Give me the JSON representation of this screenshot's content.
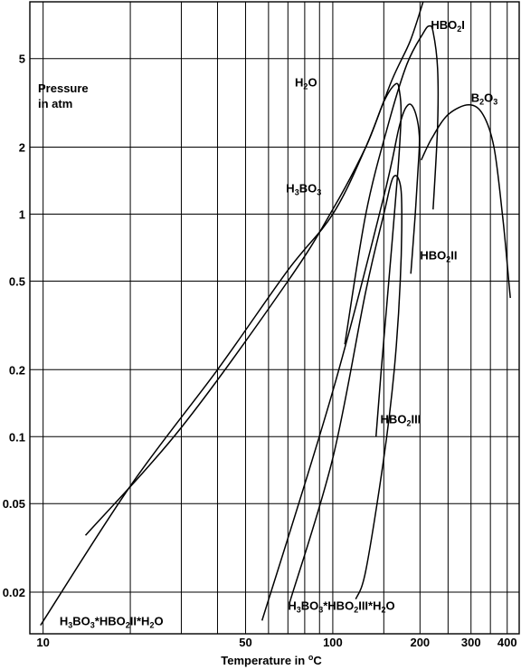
{
  "chart_data": {
    "type": "line",
    "title": "",
    "xlabel": "Temperature in °C",
    "xlabel_parts": {
      "text": "Temperature in ",
      "sup": "o",
      "unit": "C"
    },
    "ylabel_lines": [
      "Pressure",
      "in atm"
    ],
    "x_scale": "log",
    "y_scale": "log",
    "xlim": [
      9,
      440
    ],
    "ylim": [
      0.013,
      9
    ],
    "grid": true,
    "x_gridlines": [
      10,
      20,
      30,
      40,
      50,
      60,
      70,
      80,
      90,
      100,
      150,
      200,
      250,
      300,
      350,
      400
    ],
    "y_gridlines": [
      0.02,
      0.05,
      0.1,
      0.2,
      0.5,
      1,
      2,
      5
    ],
    "x_tick_labels": [
      {
        "value": 10,
        "label": "10"
      },
      {
        "value": 50,
        "label": "50"
      },
      {
        "value": 100,
        "label": "100"
      },
      {
        "value": 200,
        "label": "200"
      },
      {
        "value": 300,
        "label": "300"
      },
      {
        "value": 400,
        "label": "400"
      }
    ],
    "y_tick_labels": [
      {
        "value": 0.02,
        "label": "0.02"
      },
      {
        "value": 0.05,
        "label": "0.05"
      },
      {
        "value": 0.1,
        "label": "0.1"
      },
      {
        "value": 0.2,
        "label": "0.2"
      },
      {
        "value": 0.5,
        "label": "0.5"
      },
      {
        "value": 1,
        "label": "1"
      },
      {
        "value": 2,
        "label": "2"
      },
      {
        "value": 5,
        "label": "5"
      }
    ],
    "series": [
      {
        "name": "H2O",
        "label_parts": [
          {
            "t": "H"
          },
          {
            "t": "2",
            "sub": true
          },
          {
            "t": "O"
          }
        ],
        "label_at": {
          "x": 74,
          "y": 3.75
        },
        "points": [
          [
            9.8,
            0.0142
          ],
          [
            20,
            0.06
          ],
          [
            40,
            0.2
          ],
          [
            70,
            0.56
          ],
          [
            100,
            1.0
          ],
          [
            130,
            2.0
          ],
          [
            160,
            4.0
          ],
          [
            185,
            6.0
          ],
          [
            205,
            9.0
          ]
        ]
      },
      {
        "name": "H3BO3",
        "label_parts": [
          {
            "t": "H"
          },
          {
            "t": "3",
            "sub": true
          },
          {
            "t": "BO"
          },
          {
            "t": "3",
            "sub": true
          }
        ],
        "label_at": {
          "x": 69,
          "y": 1.25
        },
        "points": [
          [
            14,
            0.036
          ],
          [
            30,
            0.11
          ],
          [
            70,
            0.5
          ],
          [
            100,
            1.05
          ],
          [
            130,
            2.0
          ],
          [
            150,
            3.2
          ],
          [
            165,
            3.85
          ],
          [
            170,
            3.55
          ],
          [
            172,
            2.8
          ],
          [
            168,
            1.6
          ],
          [
            158,
            0.6
          ],
          [
            147,
            0.2
          ],
          [
            141,
            0.1
          ]
        ]
      },
      {
        "name": "HBO2I",
        "label_parts": [
          {
            "t": "HBO"
          },
          {
            "t": "2",
            "sub": true
          },
          {
            "t": "I"
          }
        ],
        "label_at": {
          "x": 218,
          "y": 6.8
        },
        "points": [
          [
            110,
            0.26
          ],
          [
            130,
            1.0
          ],
          [
            155,
            2.5
          ],
          [
            180,
            4.7
          ],
          [
            205,
            6.5
          ],
          [
            215,
            7.0
          ],
          [
            222,
            6.6
          ],
          [
            230,
            4.5
          ],
          [
            230,
            2.5
          ],
          [
            222,
            1.05
          ]
        ]
      },
      {
        "name": "HBO2II",
        "label_parts": [
          {
            "t": "HBO"
          },
          {
            "t": "2",
            "sub": true
          },
          {
            "t": "II"
          }
        ],
        "label_at": {
          "x": 200,
          "y": 0.625
        },
        "points": [
          [
            57,
            0.0149
          ],
          [
            100,
            0.16
          ],
          [
            150,
            1.2
          ],
          [
            170,
            2.5
          ],
          [
            182,
            3.1
          ],
          [
            192,
            2.9
          ],
          [
            199,
            2.25
          ],
          [
            197,
            1.6
          ],
          [
            192,
            0.95
          ],
          [
            186,
            0.54
          ]
        ]
      },
      {
        "name": "HBO2III",
        "label_parts": [
          {
            "t": "HBO"
          },
          {
            "t": "2",
            "sub": true
          },
          {
            "t": "III"
          }
        ],
        "label_at": {
          "x": 146,
          "y": 0.115
        },
        "points": [
          [
            71,
            0.018
          ],
          [
            100,
            0.08
          ],
          [
            130,
            0.45
          ],
          [
            150,
            1.0
          ],
          [
            161,
            1.45
          ],
          [
            170,
            1.4
          ],
          [
            173,
            1.05
          ],
          [
            171,
            0.5
          ],
          [
            163,
            0.2
          ],
          [
            150,
            0.08
          ],
          [
            130,
            0.025
          ],
          [
            120,
            0.0186
          ]
        ]
      },
      {
        "name": "B2O3",
        "label_parts": [
          {
            "t": "B"
          },
          {
            "t": "2",
            "sub": true
          },
          {
            "t": "O"
          },
          {
            "t": "3",
            "sub": true
          }
        ],
        "label_at": {
          "x": 300,
          "y": 3.2
        },
        "points": [
          [
            202,
            1.75
          ],
          [
            220,
            2.2
          ],
          [
            250,
            2.8
          ],
          [
            295,
            3.1
          ],
          [
            330,
            2.8
          ],
          [
            360,
            2.0
          ],
          [
            385,
            1.0
          ],
          [
            400,
            0.6
          ],
          [
            410,
            0.42
          ]
        ]
      },
      {
        "name": "H3BO3*HBO2III*H2O",
        "label_parts": [
          {
            "t": "H"
          },
          {
            "t": "3",
            "sub": true
          },
          {
            "t": "BO"
          },
          {
            "t": "3",
            "sub": true
          },
          {
            "t": "*HBO"
          },
          {
            "t": "2",
            "sub": true
          },
          {
            "t": "III*H"
          },
          {
            "t": "2",
            "sub": true
          },
          {
            "t": "O"
          }
        ],
        "label_at": {
          "x": 70,
          "y": 0.0167
        }
      },
      {
        "name": "H3BO3*HBO2II*H2O",
        "label_parts": [
          {
            "t": "H"
          },
          {
            "t": "3",
            "sub": true
          },
          {
            "t": "BO"
          },
          {
            "t": "3",
            "sub": true
          },
          {
            "t": "*HBO"
          },
          {
            "t": "2",
            "sub": true
          },
          {
            "t": "II*H"
          },
          {
            "t": "2",
            "sub": true
          },
          {
            "t": "O"
          }
        ],
        "label_at": {
          "x": 11.4,
          "y": 0.0142
        }
      }
    ]
  }
}
